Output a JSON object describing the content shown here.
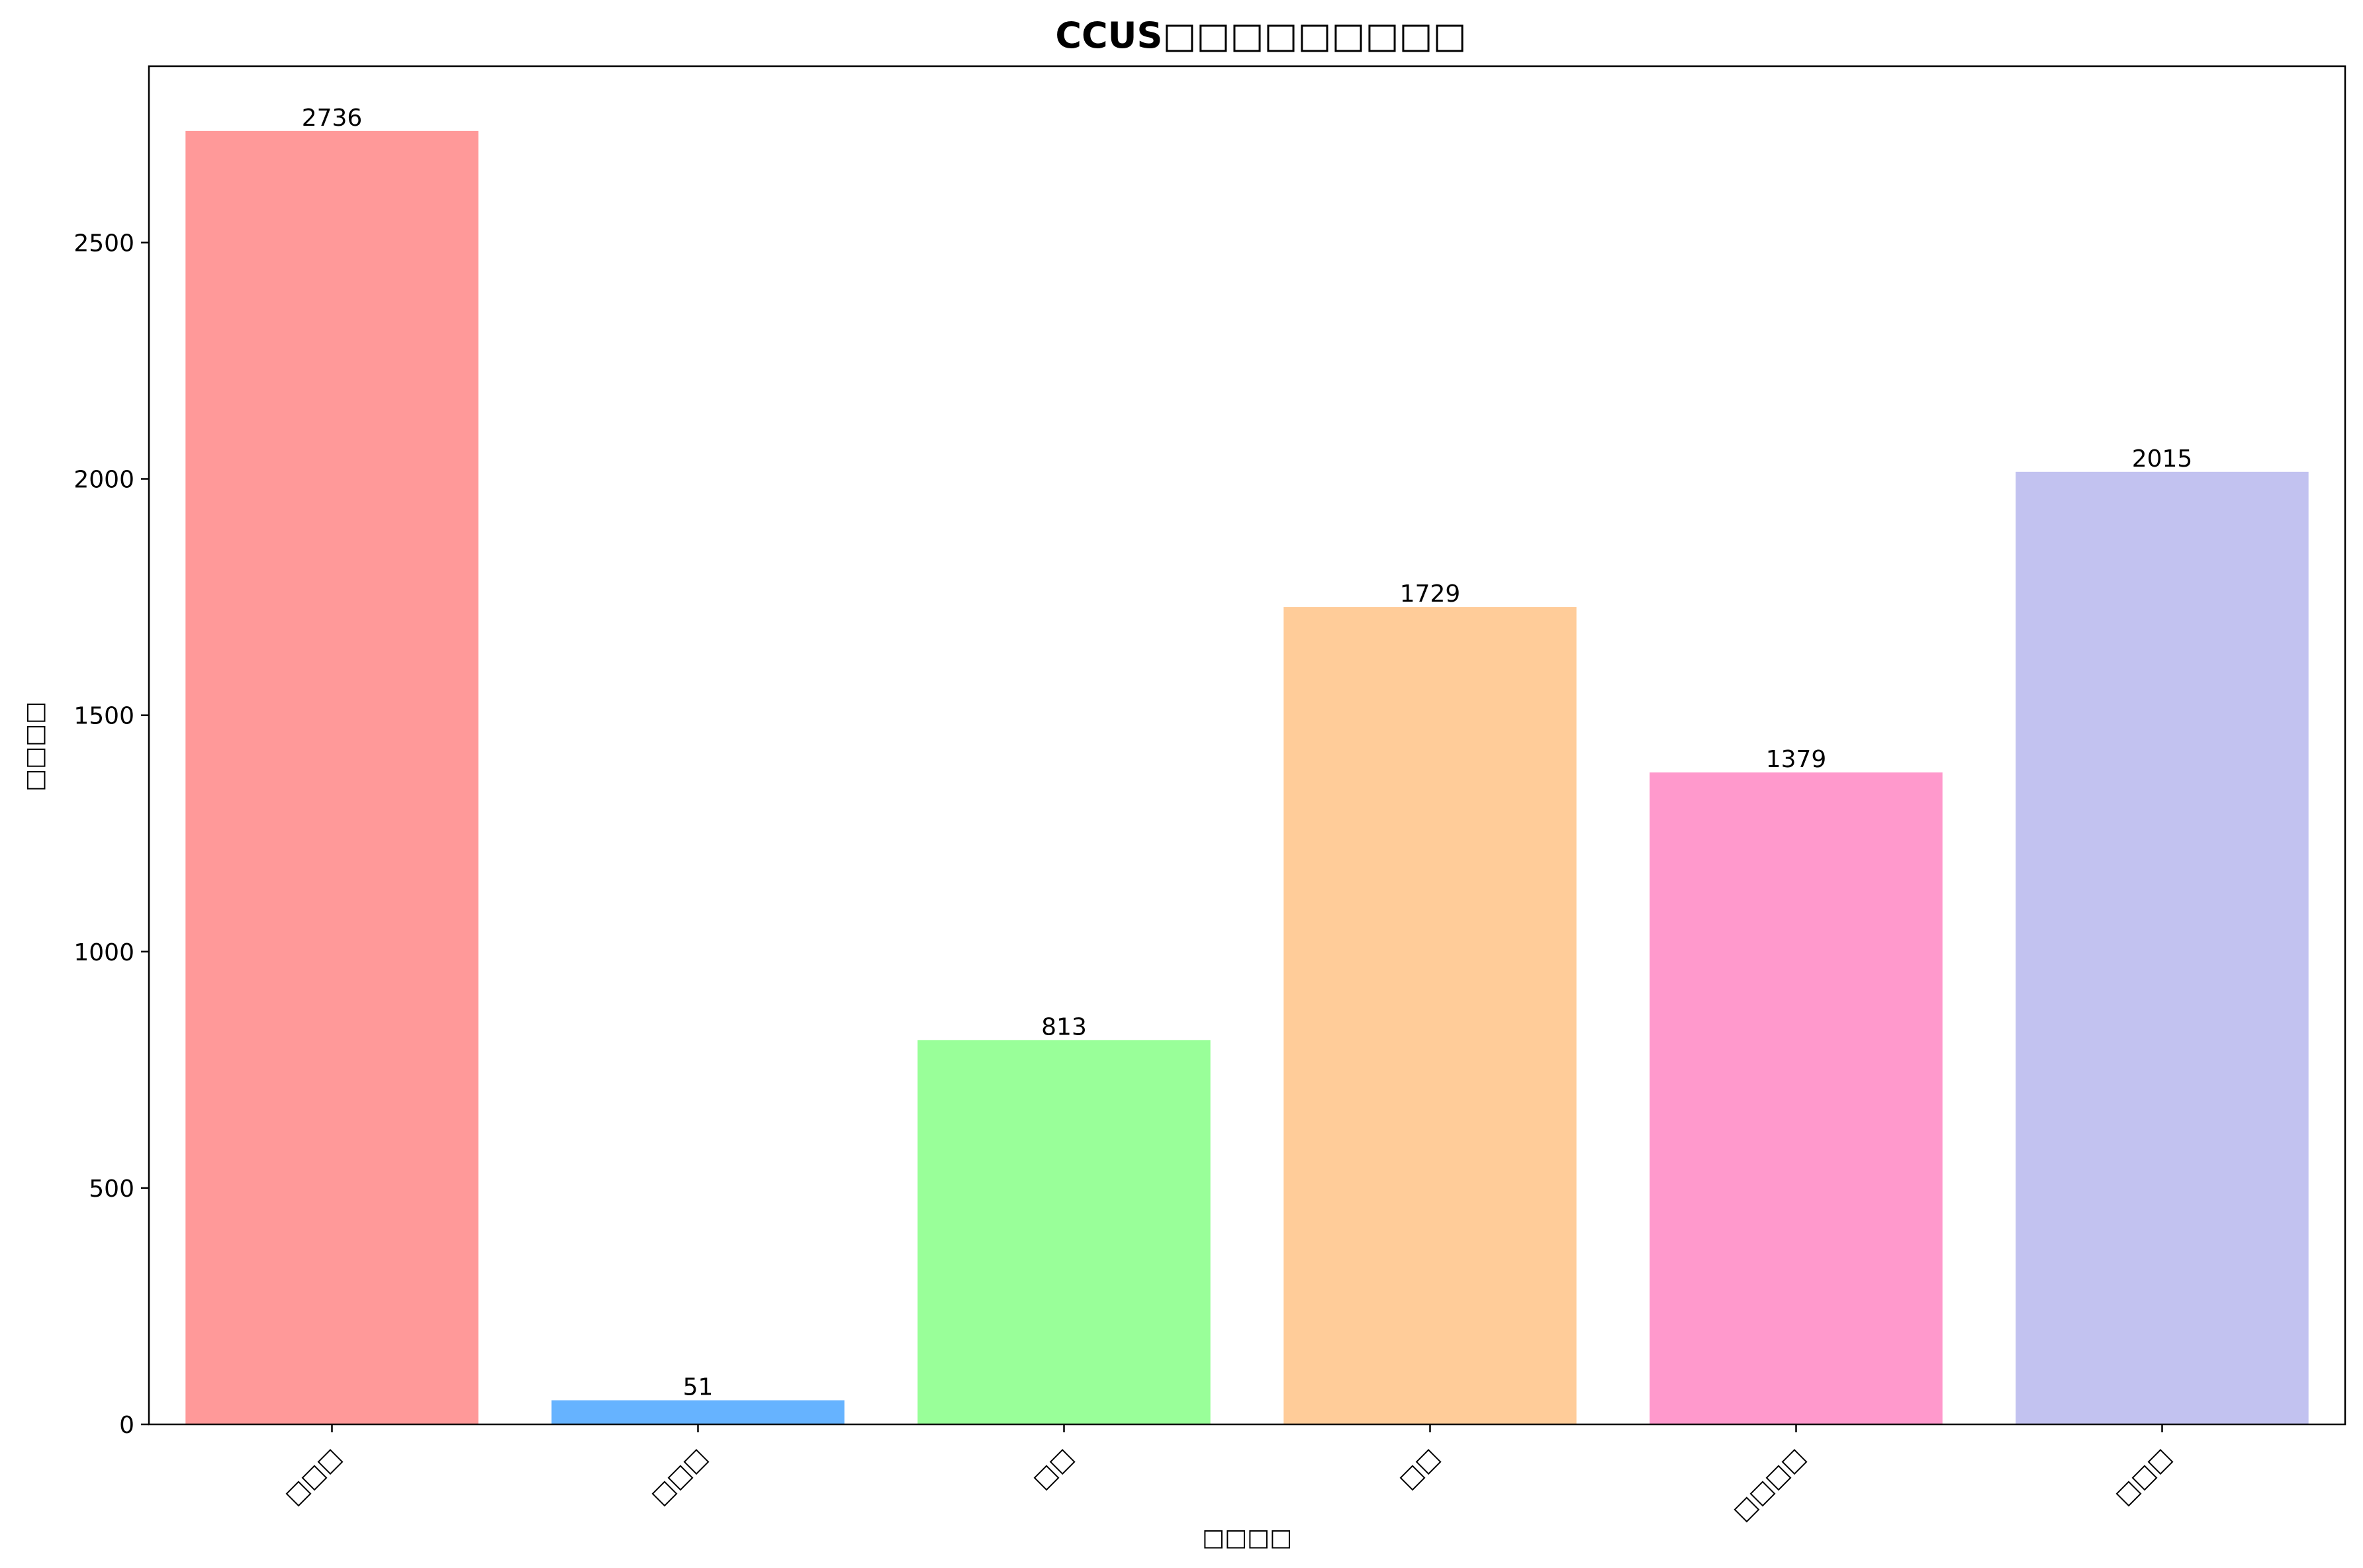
{
  "chart_data": {
    "type": "bar",
    "title": "CCUS□□□□□□□□□",
    "xlabel": "□□□□",
    "ylabel": "□□□□",
    "categories": [
      "□□□",
      "□□□",
      "□□",
      "□□",
      "□□□□",
      "□□□"
    ],
    "values": [
      2736,
      51,
      813,
      1729,
      1379,
      2015
    ],
    "colors": [
      "#ff9999",
      "#66b3ff",
      "#99ff99",
      "#ffcc99",
      "#ff99cc",
      "#c2c2f0"
    ],
    "ylim": [
      0,
      2873
    ],
    "yticks": [
      0,
      500,
      1000,
      1500,
      2000,
      2500
    ],
    "grid": false,
    "legend": "none"
  }
}
